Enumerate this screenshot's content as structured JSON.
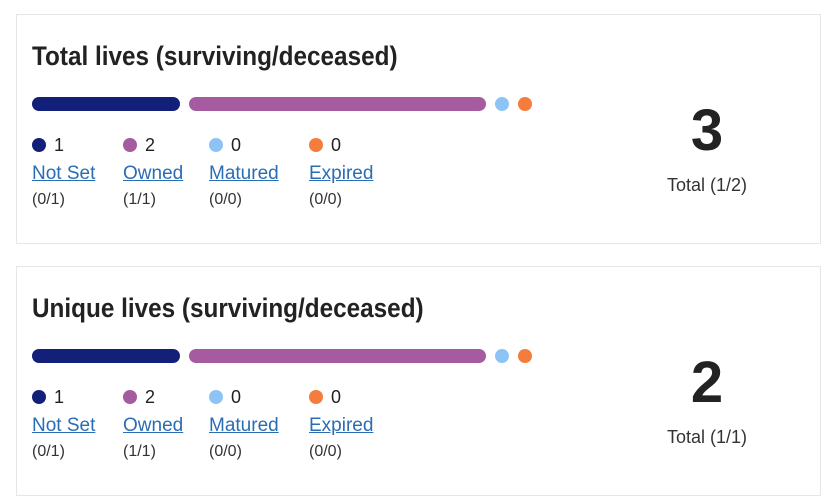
{
  "cards": [
    {
      "title": "Total lives (surviving/deceased)",
      "items": [
        {
          "count": 1,
          "label": "Not Set",
          "sub": "(0/1)",
          "color": "#13207a"
        },
        {
          "count": 2,
          "label": "Owned",
          "sub": "(1/1)",
          "color": "#a65ba1"
        },
        {
          "count": 0,
          "label": "Matured",
          "sub": "(0/0)",
          "color": "#8ec4f5"
        },
        {
          "count": 0,
          "label": "Expired",
          "sub": "(0/0)",
          "color": "#f47c3c"
        }
      ],
      "total": 3,
      "total_label": "Total (1/2)"
    },
    {
      "title": "Unique lives (surviving/deceased)",
      "items": [
        {
          "count": 1,
          "label": "Not Set",
          "sub": "(0/1)",
          "color": "#13207a"
        },
        {
          "count": 2,
          "label": "Owned",
          "sub": "(1/1)",
          "color": "#a65ba1"
        },
        {
          "count": 0,
          "label": "Matured",
          "sub": "(0/0)",
          "color": "#8ec4f5"
        },
        {
          "count": 0,
          "label": "Expired",
          "sub": "(0/0)",
          "color": "#f47c3c"
        }
      ],
      "total": 2,
      "total_label": "Total (1/1)"
    }
  ]
}
